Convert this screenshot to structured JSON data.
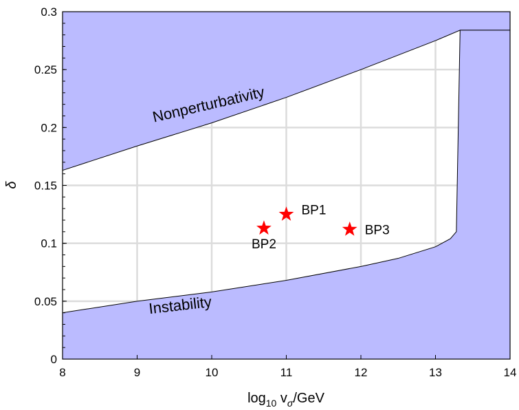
{
  "chart_data": {
    "type": "area",
    "title": "",
    "xlabel": {
      "main": "log",
      "sub": "10",
      "var": " v",
      "var_sub": "σ",
      "unit": "/GeV"
    },
    "ylabel": "δ",
    "xlim": [
      8,
      14
    ],
    "ylim": [
      0,
      0.3
    ],
    "grid": true,
    "x_ticks": [
      8,
      9,
      10,
      11,
      12,
      13,
      14
    ],
    "x_tick_labels": [
      "8",
      "9",
      "10",
      "11",
      "12",
      "13",
      "14"
    ],
    "y_ticks": [
      0,
      0.05,
      0.1,
      0.15,
      0.2,
      0.25,
      0.3
    ],
    "y_tick_labels": [
      "0",
      "0.05",
      "0.1",
      "0.15",
      "0.2",
      "0.25",
      "0.3"
    ],
    "region_color": "#bbbbff",
    "point_color": "#ff0000",
    "nonperturbativity_boundary": [
      {
        "x": 8.0,
        "y": 0.163
      },
      {
        "x": 9.0,
        "y": 0.184
      },
      {
        "x": 10.0,
        "y": 0.204
      },
      {
        "x": 11.0,
        "y": 0.226
      },
      {
        "x": 12.0,
        "y": 0.25
      },
      {
        "x": 13.0,
        "y": 0.275
      },
      {
        "x": 13.33,
        "y": 0.284
      },
      {
        "x": 14.0,
        "y": 0.284
      }
    ],
    "instability_boundary": [
      {
        "x": 8.0,
        "y": 0.04
      },
      {
        "x": 9.0,
        "y": 0.05
      },
      {
        "x": 10.0,
        "y": 0.058
      },
      {
        "x": 11.0,
        "y": 0.068
      },
      {
        "x": 12.0,
        "y": 0.08
      },
      {
        "x": 12.5,
        "y": 0.087
      },
      {
        "x": 13.0,
        "y": 0.097
      },
      {
        "x": 13.2,
        "y": 0.104
      },
      {
        "x": 13.28,
        "y": 0.11
      },
      {
        "x": 13.33,
        "y": 0.284
      }
    ],
    "region_labels": {
      "upper": "Nonperturbativity",
      "lower": "Instability"
    },
    "benchmark_points": [
      {
        "name": "BP1",
        "x": 11.0,
        "y": 0.125
      },
      {
        "name": "BP2",
        "x": 10.7,
        "y": 0.113
      },
      {
        "name": "BP3",
        "x": 11.85,
        "y": 0.112
      }
    ]
  }
}
